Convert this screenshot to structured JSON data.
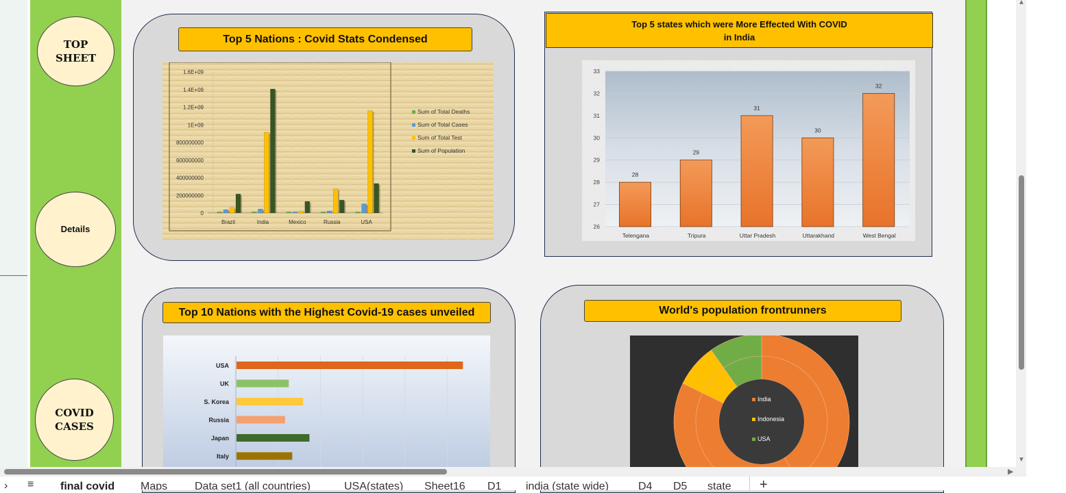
{
  "nav": {
    "top_sheet": "TOP\nSHEET",
    "details": "Details",
    "covid_cases": "COVID\nCASES"
  },
  "panels": {
    "nations_title": "Top 5 Nations : Covid Stats Condensed",
    "states_title": "Top 5 states which were  More Effected With COVID\nin India",
    "top10_title": "Top 10 Nations with the Highest Covid-19 cases unveiled",
    "population_title": "World's population frontrunners"
  },
  "chart_data": [
    {
      "type": "bar",
      "title": "Top 5 Nations : Covid Stats Condensed",
      "categories": [
        "Brazil",
        "India",
        "Mexico",
        "Russia",
        "USA"
      ],
      "ytick_labels": [
        "0",
        "200000000",
        "400000000",
        "600000000",
        "800000000",
        "1E+09",
        "1.2E+09",
        "1.4E+09",
        "1.6E+09"
      ],
      "ylim": [
        0,
        1600000000
      ],
      "legend_position": "right",
      "series": [
        {
          "name": "Sum of Total Deaths",
          "color": "#70ad47",
          "values": [
            700000,
            530000,
            330000,
            400000,
            1100000
          ]
        },
        {
          "name": "Sum of Total Cases",
          "color": "#5b9bd5",
          "values": [
            37000000,
            44000000,
            7500000,
            22000000,
            104000000
          ]
        },
        {
          "name": "Sum of Total Test",
          "color": "#ffc000",
          "values": [
            64000000,
            915000000,
            20000000,
            273000000,
            1160000000
          ]
        },
        {
          "name": "Sum of Population",
          "color": "#375623",
          "values": [
            215000000,
            1406000000,
            131000000,
            146000000,
            334000000
          ]
        }
      ]
    },
    {
      "type": "bar",
      "title": "Top 5 states which were  More Effected With COVID in India",
      "categories": [
        "Telengana",
        "Tripura",
        "Uttar Pradesh",
        "Uttarakhand",
        "West Bengal"
      ],
      "values": [
        28,
        29,
        31,
        30,
        32
      ],
      "ylim": [
        26,
        33
      ],
      "ytick_labels": [
        "26",
        "27",
        "28",
        "29",
        "30",
        "31",
        "32",
        "33"
      ],
      "color": "#ed7d31"
    },
    {
      "type": "bar",
      "orientation": "horizontal",
      "title": "Top 10 Nations with the Highest Covid-19 cases unveiled",
      "categories": [
        "USA",
        "UK",
        "S. Korea",
        "Russia",
        "Japan",
        "Italy"
      ],
      "values": [
        104,
        24,
        30.6,
        22.3,
        33.5,
        25.6
      ],
      "colors": [
        "#e0661c",
        "#8cc168",
        "#ffc93b",
        "#f4a070",
        "#3e6b2c",
        "#9c7300"
      ]
    },
    {
      "type": "pie",
      "subtype": "doughnut",
      "title": "World's population frontrunners",
      "legend_position": "center",
      "series": [
        {
          "name": "India",
          "color": "#ed7d31",
          "values": [
            1406
          ]
        },
        {
          "name": "Indonesia",
          "color": "#ffc000",
          "values": [
            275
          ]
        },
        {
          "name": "USA",
          "color": "#70ad47",
          "values": [
            334
          ]
        }
      ],
      "rings": [
        {
          "values": [
            1406,
            1412,
            275,
            334
          ]
        },
        {
          "values": [
            1406,
            1412,
            275,
            334
          ]
        }
      ]
    }
  ],
  "sheet_tabs": [
    "final covid",
    "Maps",
    "Data set1 (all countries)",
    "USA(states)",
    "Sheet16",
    "D1",
    "india (state wide)",
    "D4",
    "D5",
    "state"
  ],
  "icons": {
    "prev_sheets": "chevron-right-icon",
    "all_sheets": "hamburger-menu-icon",
    "add_sheet": "plus-icon"
  }
}
